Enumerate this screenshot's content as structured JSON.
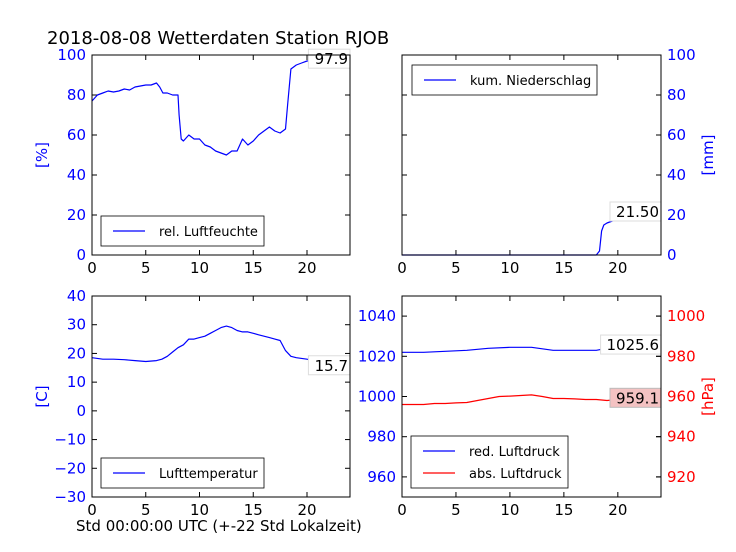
{
  "title": "2018-08-08 Wetterdaten Station RJOB",
  "xcaption": "Std 00:00:00 UTC (+-22 Std Lokalzeit)",
  "colors": {
    "blue": "#0000ff",
    "red": "#ff0000",
    "annot_box": "#f4c2c2"
  },
  "chart_data": [
    {
      "type": "line",
      "panel": "top-left",
      "ylabel": "[%]",
      "ylabel_side": "left",
      "ylabel_color": "#0000ff",
      "xlim": [
        0,
        24
      ],
      "ylim": [
        0,
        100
      ],
      "xticks": [
        0,
        5,
        10,
        15,
        20
      ],
      "yticks": [
        0,
        20,
        40,
        60,
        80,
        100
      ],
      "ytick_side": "left",
      "ytick_color": "#0000ff",
      "legend_placement": "lower-left",
      "series": [
        {
          "name": "rel. Luftfeuchte",
          "color": "#0000ff",
          "x": [
            0,
            0.5,
            1,
            1.5,
            2,
            2.5,
            3,
            3.5,
            4,
            4.5,
            5,
            5.5,
            6,
            6.3,
            6.6,
            7,
            7.5,
            8,
            8.1,
            8.3,
            8.5,
            9,
            9.5,
            10,
            10.5,
            11,
            11.5,
            12,
            12.5,
            13,
            13.5,
            14,
            14.5,
            15,
            15.5,
            16,
            16.5,
            17,
            17.5,
            18,
            18.2,
            18.5,
            19,
            19.5,
            20,
            21,
            22,
            23,
            24
          ],
          "y": [
            77,
            80,
            81,
            82,
            81.5,
            82,
            83,
            82.5,
            84,
            84.5,
            85,
            85,
            86,
            84,
            81,
            81,
            80,
            80,
            70,
            58,
            57,
            60,
            58,
            58,
            55,
            54,
            52,
            51,
            50,
            52,
            52,
            58,
            55,
            57,
            60,
            62,
            64,
            62,
            61,
            63,
            75,
            93,
            95,
            96,
            97,
            97.5,
            97.8,
            97.9,
            97.9
          ]
        }
      ],
      "annotations": [
        {
          "text": "97.9",
          "boxed": false
        }
      ]
    },
    {
      "type": "line",
      "panel": "top-right",
      "ylabel": "[mm]",
      "ylabel_side": "right",
      "ylabel_color": "#0000ff",
      "xlim": [
        0,
        24
      ],
      "ylim": [
        0,
        100
      ],
      "xticks": [
        0,
        5,
        10,
        15,
        20
      ],
      "yticks": [
        0,
        20,
        40,
        60,
        80,
        100
      ],
      "ytick_side": "right",
      "ytick_color": "#0000ff",
      "legend_placement": "upper-left",
      "series": [
        {
          "name": "kum. Niederschlag",
          "color": "#0000ff",
          "x": [
            0,
            5,
            10,
            15,
            18,
            18.3,
            18.5,
            18.7,
            19,
            19.5,
            20,
            20.5,
            21,
            21.5,
            22,
            23,
            24
          ],
          "y": [
            0,
            0,
            0,
            0,
            0,
            2,
            12,
            15,
            16,
            17,
            18,
            20,
            21,
            21.5,
            21.5,
            21.5,
            21.5
          ]
        }
      ],
      "annotations": [
        {
          "text": "21.50",
          "boxed": false
        }
      ]
    },
    {
      "type": "line",
      "panel": "bottom-left",
      "ylabel": "[C]",
      "ylabel_side": "left",
      "ylabel_color": "#0000ff",
      "xlim": [
        0,
        24
      ],
      "ylim": [
        -30,
        40
      ],
      "xticks": [
        0,
        5,
        10,
        15,
        20
      ],
      "yticks": [
        -30,
        -20,
        -10,
        0,
        10,
        20,
        30,
        40
      ],
      "ytick_side": "left",
      "ytick_color": "#0000ff",
      "legend_placement": "lower-left",
      "series": [
        {
          "name": "Lufttemperatur",
          "color": "#0000ff",
          "x": [
            0,
            1,
            2,
            3,
            4,
            5,
            6,
            6.5,
            7,
            7.5,
            8,
            8.5,
            9,
            9.5,
            10,
            10.5,
            11,
            11.5,
            12,
            12.5,
            13,
            13.5,
            14,
            14.5,
            15,
            15.5,
            16,
            16.5,
            17,
            17.5,
            18,
            18.5,
            19,
            20,
            21,
            22,
            23,
            24
          ],
          "y": [
            18.5,
            18,
            18,
            17.8,
            17.5,
            17.2,
            17.5,
            18,
            19,
            20.5,
            22,
            23,
            25,
            25,
            25.5,
            26,
            27,
            28,
            29,
            29.5,
            29,
            28,
            27.5,
            27.5,
            27,
            26.5,
            26,
            25.5,
            25,
            24.5,
            21,
            19,
            18.5,
            18,
            17,
            16.5,
            16,
            15.7
          ]
        }
      ],
      "annotations": [
        {
          "text": "15.7",
          "boxed": false
        }
      ]
    },
    {
      "type": "line",
      "panel": "bottom-right",
      "ylabel": "[hPa]",
      "ylabel_side": "right",
      "ylabel_color": "#ff0000",
      "xlim": [
        0,
        24
      ],
      "ylim": [
        950,
        1050
      ],
      "ylim_right": [
        910,
        1010
      ],
      "xticks": [
        0,
        5,
        10,
        15,
        20
      ],
      "yticks": [
        960,
        980,
        1000,
        1020,
        1040
      ],
      "ytick_side": "left",
      "ytick_color": "#0000ff",
      "yticks_right": [
        920,
        940,
        960,
        980,
        1000
      ],
      "ytick_right_color": "#ff0000",
      "legend_placement": "lower-left",
      "series": [
        {
          "name": "red. Luftdruck",
          "color": "#0000ff",
          "axis": "left",
          "x": [
            0,
            2,
            4,
            6,
            8,
            10,
            12,
            14,
            16,
            18,
            19,
            20,
            21,
            22,
            23,
            24
          ],
          "y": [
            1022,
            1022,
            1022.5,
            1023,
            1024,
            1024.5,
            1024.5,
            1023,
            1023,
            1023,
            1024,
            1025,
            1025.5,
            1025.6,
            1025.6,
            1025.6
          ]
        },
        {
          "name": "abs. Luftdruck",
          "color": "#ff0000",
          "axis": "right",
          "x": [
            0,
            1,
            2,
            3,
            4,
            5,
            6,
            7,
            8,
            9,
            10,
            11,
            12,
            13,
            14,
            15,
            16,
            17,
            18,
            19,
            20,
            21,
            22,
            23,
            24
          ],
          "y": [
            956,
            956,
            956,
            956.5,
            956.5,
            956.8,
            957,
            958,
            959,
            960,
            960.2,
            960.5,
            960.8,
            960,
            959,
            959,
            958.8,
            958.5,
            958.5,
            958,
            958.5,
            959,
            959,
            959.1,
            959.1
          ]
        }
      ],
      "annotations": [
        {
          "text": "1025.6",
          "boxed": false
        },
        {
          "text": "959.1",
          "boxed": true
        }
      ]
    }
  ]
}
